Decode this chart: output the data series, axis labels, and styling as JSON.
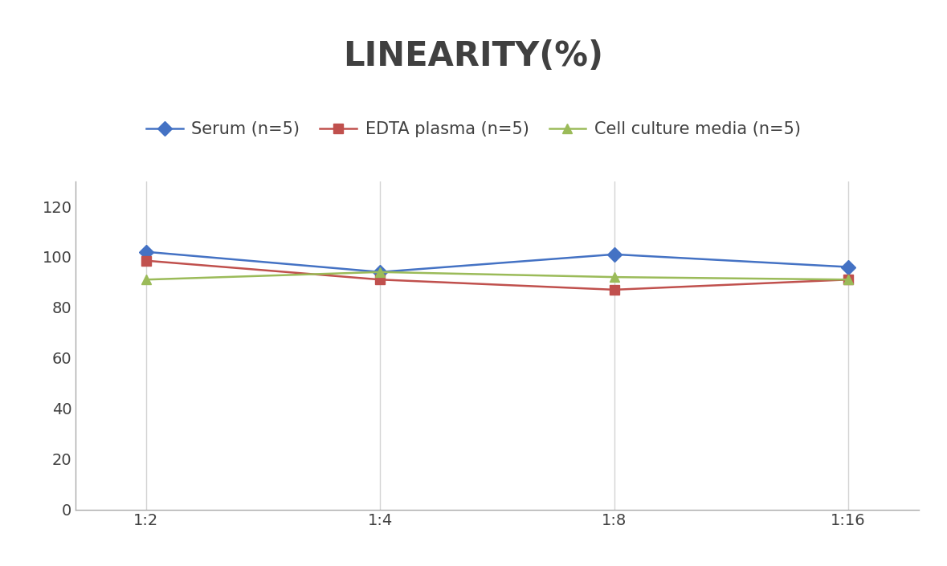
{
  "title": "LINEARITY(%)",
  "title_fontsize": 30,
  "title_fontweight": "bold",
  "title_color": "#404040",
  "x_labels": [
    "1:2",
    "1:4",
    "1:8",
    "1:16"
  ],
  "x_positions": [
    0,
    1,
    2,
    3
  ],
  "series": [
    {
      "label": "Serum (n=5)",
      "values": [
        102,
        94,
        101,
        96
      ],
      "color": "#4472C4",
      "marker": "D",
      "markersize": 9,
      "linewidth": 1.8
    },
    {
      "label": "EDTA plasma (n=5)",
      "values": [
        98.5,
        91,
        87,
        91
      ],
      "color": "#C0504D",
      "marker": "s",
      "markersize": 9,
      "linewidth": 1.8
    },
    {
      "label": "Cell culture media (n=5)",
      "values": [
        91,
        94,
        92,
        91
      ],
      "color": "#9BBB59",
      "marker": "^",
      "markersize": 9,
      "linewidth": 1.8
    }
  ],
  "ylim": [
    0,
    130
  ],
  "yticks": [
    0,
    20,
    40,
    60,
    80,
    100,
    120
  ],
  "grid_color": "#D3D3D3",
  "background_color": "#FFFFFF",
  "legend_fontsize": 15,
  "tick_fontsize": 14,
  "tick_color": "#404040",
  "figsize": [
    11.79,
    7.05
  ]
}
